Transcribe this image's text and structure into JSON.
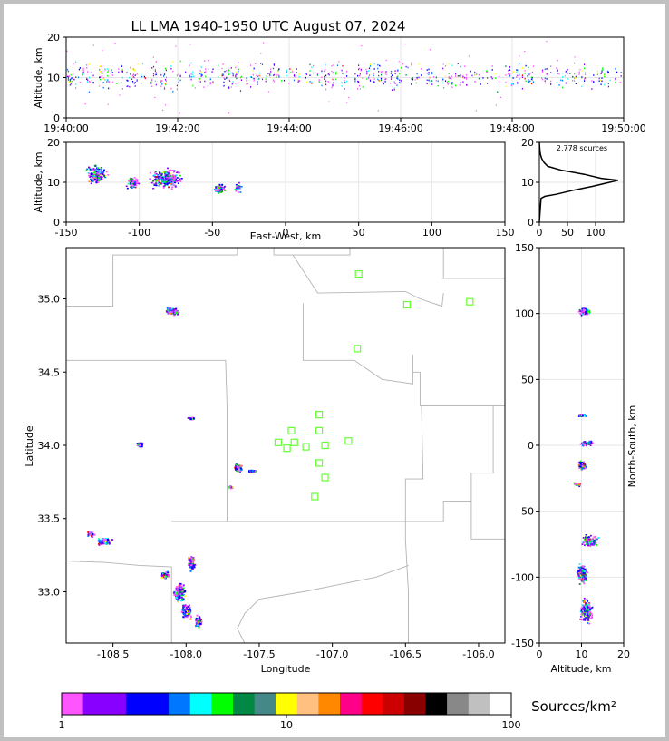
{
  "title": "LL LMA 1940-1950 UTC August 07, 2024",
  "colorbar_label": "Sources/km²",
  "colorbar_ticks": [
    "1",
    "10",
    "100"
  ],
  "colorbar_colors": [
    "#ff55ff",
    "#8800ff",
    "#8800ff",
    "#0000ff",
    "#0000ff",
    "#0077ff",
    "#00ffff",
    "#00ff00",
    "#008844",
    "#448888",
    "#ffff00",
    "#ffc080",
    "#ff8800",
    "#ff0088",
    "#ff0000",
    "#cc0000",
    "#880000",
    "#000000",
    "#888888",
    "#c0c0c0",
    "#ffffff"
  ],
  "chart_data": [
    {
      "type": "scatter",
      "id": "time-altitude",
      "xlabel": "",
      "ylabel": "Altitude, km",
      "xlim_seconds": [
        0,
        600
      ],
      "ylim": [
        0,
        20
      ],
      "xticks": [
        "19:40:00",
        "19:42:00",
        "19:44:00",
        "19:46:00",
        "19:48:00",
        "19:50:00"
      ],
      "yticks": [
        "0",
        "10",
        "20"
      ],
      "altitude_band_km": [
        6,
        15
      ]
    },
    {
      "type": "heatmap",
      "id": "eastwest-altitude",
      "xlabel": "East-West, km",
      "ylabel": "Altitude, km",
      "xlim": [
        -150,
        150
      ],
      "ylim": [
        0,
        20
      ],
      "xticks": [
        "-150",
        "-100",
        "-50",
        "0",
        "50",
        "100",
        "150"
      ],
      "yticks": [
        "0",
        "10",
        "20"
      ],
      "clusters": [
        {
          "x": -130,
          "y": 12
        },
        {
          "x": -105,
          "y": 10
        },
        {
          "x": -82,
          "y": 11
        },
        {
          "x": -45,
          "y": 8.5
        },
        {
          "x": -33,
          "y": 9
        }
      ]
    },
    {
      "type": "line",
      "id": "altitude-histogram",
      "annotation": "2,778 sources",
      "xlim": [
        0,
        150
      ],
      "ylim": [
        0,
        20
      ],
      "xticks": [
        "0",
        "50",
        "100"
      ],
      "yticks": [
        "0",
        "10",
        "20"
      ],
      "profile_alt": [
        0,
        2,
        4,
        6,
        6.5,
        7,
        8,
        9,
        10,
        10.5,
        11,
        12,
        13,
        14,
        15,
        16,
        17,
        18,
        20
      ],
      "profile_count": [
        0,
        1,
        2,
        3,
        10,
        30,
        60,
        95,
        125,
        140,
        110,
        80,
        40,
        15,
        8,
        4,
        2,
        1,
        0
      ]
    },
    {
      "type": "heatmap",
      "id": "plan-view",
      "xlabel": "Longitude",
      "ylabel": "Latitude",
      "xlim": [
        -108.82,
        -105.82
      ],
      "ylim": [
        32.65,
        35.35
      ],
      "xticks": [
        "-108.5",
        "-108.0",
        "-107.5",
        "-107.0",
        "-106.5",
        "-106.0"
      ],
      "yticks": [
        "33.0",
        "33.5",
        "34.0",
        "34.5",
        "35.0"
      ],
      "stations": [
        {
          "lon": -106.82,
          "lat": 35.17
        },
        {
          "lon": -106.49,
          "lat": 34.96
        },
        {
          "lon": -106.06,
          "lat": 34.98
        },
        {
          "lon": -106.83,
          "lat": 34.66
        },
        {
          "lon": -107.09,
          "lat": 34.21
        },
        {
          "lon": -107.28,
          "lat": 34.1
        },
        {
          "lon": -107.09,
          "lat": 34.1
        },
        {
          "lon": -107.37,
          "lat": 34.02
        },
        {
          "lon": -107.26,
          "lat": 34.02
        },
        {
          "lon": -107.31,
          "lat": 33.98
        },
        {
          "lon": -107.18,
          "lat": 33.99
        },
        {
          "lon": -107.05,
          "lat": 34.0
        },
        {
          "lon": -106.89,
          "lat": 34.03
        },
        {
          "lon": -107.09,
          "lat": 33.88
        },
        {
          "lon": -107.05,
          "lat": 33.78
        },
        {
          "lon": -107.12,
          "lat": 33.65
        }
      ],
      "clusters": [
        {
          "lon": -108.1,
          "lat": 34.92
        },
        {
          "lon": -107.97,
          "lat": 34.19
        },
        {
          "lon": -108.32,
          "lat": 34.01
        },
        {
          "lon": -107.65,
          "lat": 33.85
        },
        {
          "lon": -107.55,
          "lat": 33.83
        },
        {
          "lon": -107.7,
          "lat": 33.72
        },
        {
          "lon": -108.56,
          "lat": 33.35
        },
        {
          "lon": -108.65,
          "lat": 33.4
        },
        {
          "lon": -108.15,
          "lat": 33.12
        },
        {
          "lon": -107.97,
          "lat": 33.2
        },
        {
          "lon": -108.05,
          "lat": 33.0
        },
        {
          "lon": -108.0,
          "lat": 32.87
        },
        {
          "lon": -107.92,
          "lat": 32.8
        }
      ]
    },
    {
      "type": "heatmap",
      "id": "northsouth-altitude",
      "xlabel": "Altitude, km",
      "ylabel": "North-South, km",
      "xlim": [
        0,
        20
      ],
      "ylim": [
        -150,
        150
      ],
      "xticks": [
        "0",
        "10",
        "20"
      ],
      "yticks": [
        "-150",
        "-100",
        "-50",
        "0",
        "50",
        "100",
        "150"
      ],
      "clusters": [
        {
          "x": 10.5,
          "y": 102
        },
        {
          "x": 10,
          "y": 23
        },
        {
          "x": 11,
          "y": 2
        },
        {
          "x": 10,
          "y": -15
        },
        {
          "x": 9,
          "y": -29
        },
        {
          "x": 12,
          "y": -72
        },
        {
          "x": 10,
          "y": -97
        },
        {
          "x": 11,
          "y": -125
        }
      ]
    }
  ]
}
